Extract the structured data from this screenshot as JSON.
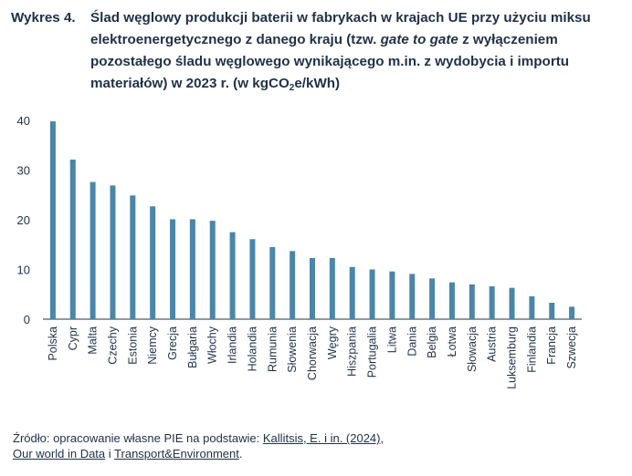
{
  "title": {
    "label": "Wykres 4.",
    "part1": "Ślad węglowy produkcji baterii w fabrykach w krajach UE przy użyciu miksu elektroenergetycznego z danego kraju (tzw. ",
    "italic": "gate to gate",
    "part2": " z wyłączeniem pozostałego śladu węglowego wynikającego m.in. z wydobycia i importu materiałów) w 2023 r. (w kgCO",
    "sub": "2",
    "part3": "e/kWh)"
  },
  "source": {
    "prefix": "Źródło: opracowanie własne PIE na podstawie: ",
    "link1": "Kallitsis, E. i in. (2024)",
    "sep1": ",",
    "link2": "Our world in Data",
    "sep2": " i ",
    "link3": "Transport&Environment",
    "end": "."
  },
  "chart_data": {
    "type": "bar",
    "title": "",
    "xlabel": "",
    "ylabel": "",
    "ylim": [
      0,
      40
    ],
    "yticks": [
      0,
      10,
      20,
      30,
      40
    ],
    "grid": false,
    "bar_color": "#4a86a8",
    "categories": [
      "Polska",
      "Cypr",
      "Malta",
      "Czechy",
      "Estonia",
      "Niemcy",
      "Grecja",
      "Bułgaria",
      "Włochy",
      "Irlandia",
      "Holandia",
      "Rumunia",
      "Słowenia",
      "Chorwacja",
      "Węgry",
      "Hiszpania",
      "Portugalia",
      "Litwa",
      "Dania",
      "Belgia",
      "Łotwa",
      "Słowacja",
      "Austria",
      "Luksemburg",
      "Finlandia",
      "Francja",
      "Szwecja"
    ],
    "values": [
      39.8,
      32.1,
      27.6,
      26.9,
      24.9,
      22.7,
      20.1,
      20.1,
      19.8,
      17.5,
      16.1,
      14.5,
      13.7,
      12.3,
      12.3,
      10.5,
      10.0,
      9.6,
      9.1,
      8.2,
      7.4,
      7.0,
      6.6,
      6.3,
      4.6,
      3.3,
      2.5
    ]
  }
}
